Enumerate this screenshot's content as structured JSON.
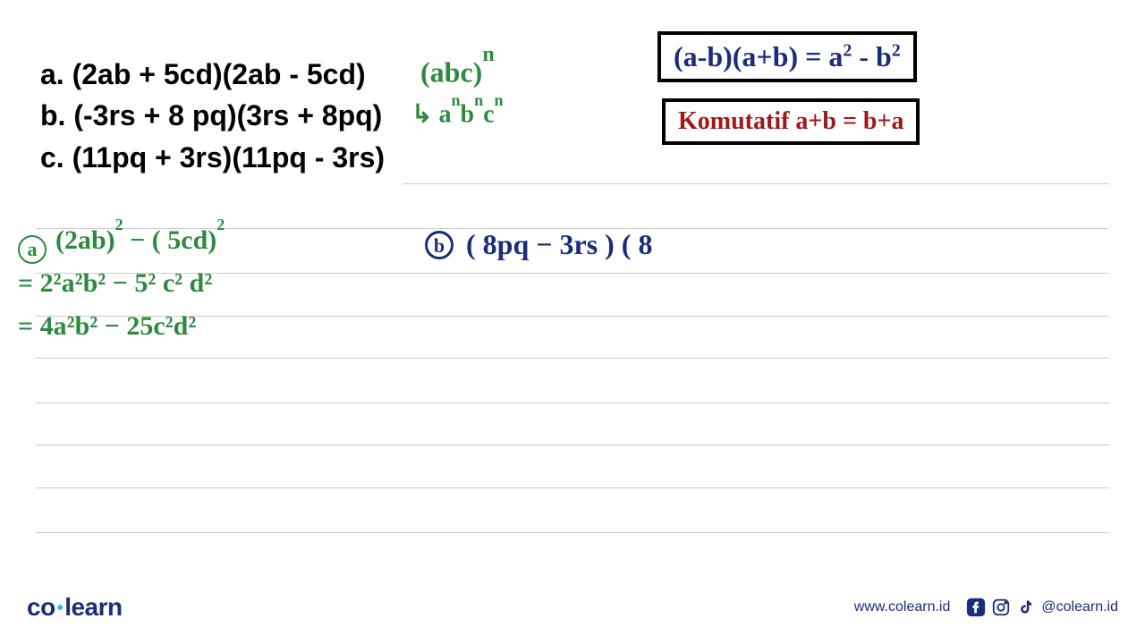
{
  "colors": {
    "black": "#000000",
    "green": "#2d8a3e",
    "blue": "#1a2d7a",
    "red": "#a01818",
    "cyan": "#35b6e8",
    "rule": "#cccccc",
    "bg": "#ffffff"
  },
  "problems": {
    "a": "a. (2ab + 5cd)(2ab - 5cd)",
    "b": "b. (-3rs + 8 pq)(3rs + 8pq)",
    "c": "c. (11pq + 3rs)(11pq - 3rs)"
  },
  "green_notes": {
    "rule1_base": "(abc)",
    "rule1_exp": "n",
    "rule2_prefix": "↳ a",
    "rule2_n": "n",
    "rule2_b": "b",
    "rule2_c": "c"
  },
  "formula1": {
    "lhs": "(a-b)(a+b)",
    "eq": " = ",
    "rhs_a": "a",
    "rhs_minus": " - ",
    "rhs_b": "b",
    "exp": "2"
  },
  "formula2": {
    "text": "Komutatif  a+b = b+a"
  },
  "work_a": {
    "label": "a",
    "line1_open": "(2ab)",
    "line1_mid": "  −  ( 5cd)",
    "exp2": "2",
    "line2": "= 2²a²b²  −  5² c² d²",
    "line3": "= 4a²b²  −  25c²d²"
  },
  "work_b": {
    "label": "b",
    "text": " ( 8pq − 3rs ) ( 8"
  },
  "ruled_lines_y": [
    0,
    50,
    100,
    148,
    195,
    245,
    292,
    340,
    390
  ],
  "ruled_lines_short": [
    0
  ],
  "footer": {
    "logo_left": "co",
    "logo_right": "learn",
    "url": "www.colearn.id",
    "handle": "@colearn.id"
  }
}
